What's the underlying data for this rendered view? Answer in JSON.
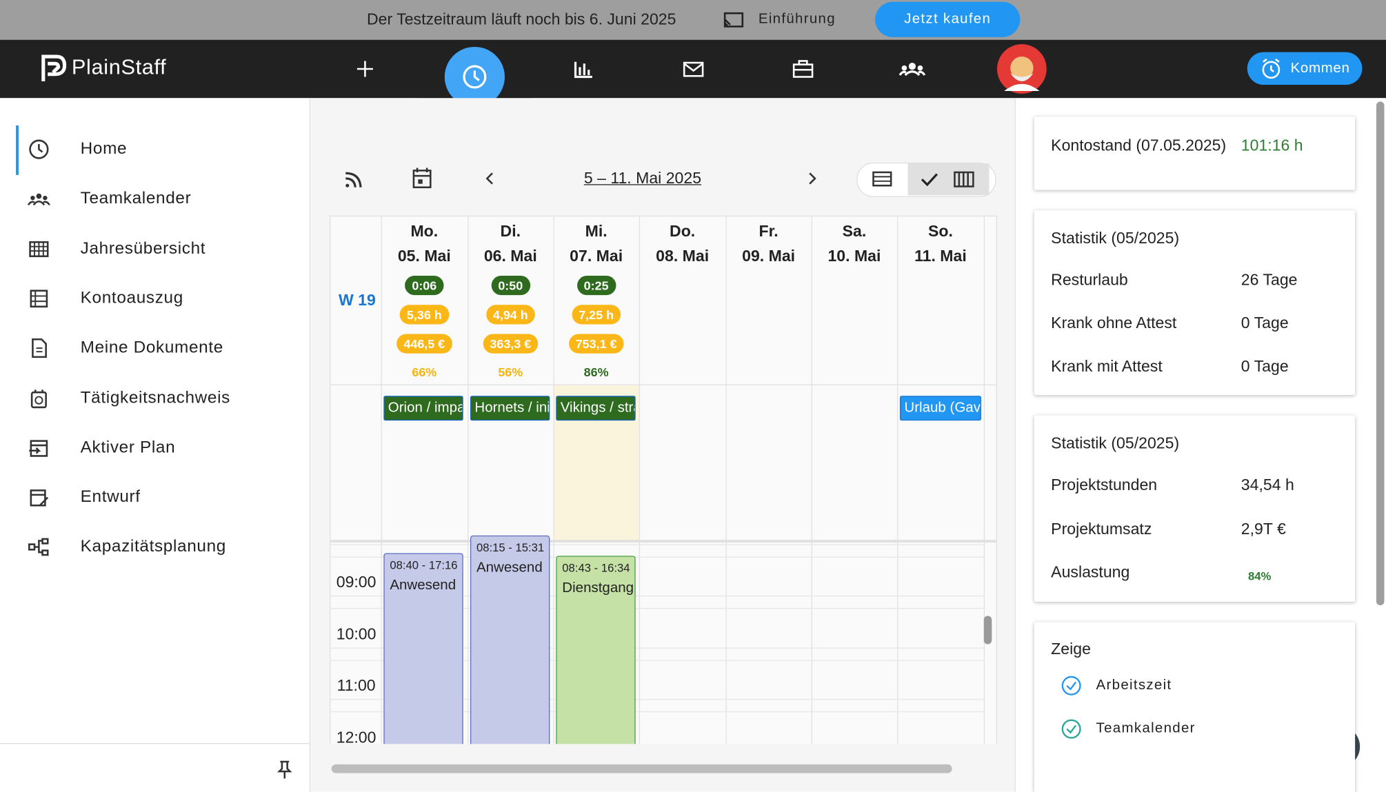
{
  "banner": {
    "text": "Der Testzeitraum läuft noch bis 6. Juni 2025",
    "intro": "Einführung",
    "buy": "Jetzt kaufen"
  },
  "nav": {
    "logo": "PlainStaff",
    "kommen": "Kommen"
  },
  "sidebar": {
    "items": [
      "Home",
      "Teamkalender",
      "Jahresübersicht",
      "Kontoauszug",
      "Meine Dokumente",
      "Tätigkeitsnachweis",
      "Aktiver Plan",
      "Entwurf",
      "Kapazitätsplanung"
    ]
  },
  "calendar": {
    "range": "5 – 11. Mai 2025",
    "week": "W 19",
    "days": [
      {
        "dow": "Mo.",
        "date": "05. Mai",
        "badges": [
          "0:06",
          "5,36 h",
          "446,5 €"
        ],
        "pct": "66%",
        "event": "Orion / impa",
        "block": {
          "time": "08:40 - 17:16",
          "label": "Anwesend"
        }
      },
      {
        "dow": "Di.",
        "date": "06. Mai",
        "badges": [
          "0:50",
          "4,94 h",
          "363,3 €"
        ],
        "pct": "56%",
        "event": "Hornets / ini",
        "block": {
          "time": "08:15 - 15:31",
          "label": "Anwesend"
        }
      },
      {
        "dow": "Mi.",
        "date": "07. Mai",
        "badges": [
          "0:25",
          "7,25 h",
          "753,1 €"
        ],
        "pct": "86%",
        "event": "Vikings / stra",
        "block": {
          "time": "08:43 - 16:34",
          "label": "Dienstgang"
        }
      },
      {
        "dow": "Do.",
        "date": "08. Mai"
      },
      {
        "dow": "Fr.",
        "date": "09. Mai"
      },
      {
        "dow": "Sa.",
        "date": "10. Mai"
      },
      {
        "dow": "So.",
        "date": "11. Mai",
        "event": "Urlaub (Gavi"
      }
    ],
    "times": [
      "09:00",
      "10:00",
      "11:00",
      "12:00"
    ]
  },
  "panel": {
    "kontostand": {
      "label": "Kontostand (07.05.2025)",
      "value": "101:16 h"
    },
    "stats1": {
      "title": "Statistik (05/2025)",
      "rows": [
        [
          "Resturlaub",
          "26 Tage"
        ],
        [
          "Krank ohne Attest",
          "0 Tage"
        ],
        [
          "Krank mit Attest",
          "0 Tage"
        ]
      ]
    },
    "stats2": {
      "title": "Statistik (05/2025)",
      "rows": [
        [
          "Projektstunden",
          "34,54 h"
        ],
        [
          "Projektumsatz",
          "2,9T €"
        ],
        [
          "Auslastung",
          "84%"
        ]
      ]
    },
    "zeige": {
      "title": "Zeige",
      "items": [
        "Arbeitszeit",
        "Teamkalender"
      ]
    }
  },
  "help": "?"
}
